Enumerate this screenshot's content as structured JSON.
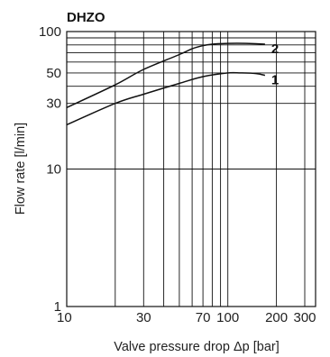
{
  "chart_data": {
    "type": "line",
    "title": "DHZO",
    "xlabel": "Valve pressure drop Δp [bar]",
    "ylabel": "Flow rate [l/min]",
    "xscale": "log",
    "yscale": "log",
    "xlim": [
      10,
      350
    ],
    "ylim": [
      1,
      100
    ],
    "grid": true,
    "x_ticks": [
      {
        "value": 10,
        "label": "10"
      },
      {
        "value": 30,
        "label": "30"
      },
      {
        "value": 70,
        "label": "70"
      },
      {
        "value": 100,
        "label": "100"
      },
      {
        "value": 200,
        "label": "200"
      },
      {
        "value": 300,
        "label": "300"
      }
    ],
    "y_ticks": [
      {
        "value": 1,
        "label": "1"
      },
      {
        "value": 10,
        "label": "10"
      },
      {
        "value": 30,
        "label": "30"
      },
      {
        "value": 50,
        "label": "50"
      },
      {
        "value": 100,
        "label": "100"
      }
    ],
    "x_grid": [
      10,
      20,
      30,
      40,
      50,
      60,
      70,
      80,
      90,
      100,
      200,
      300,
      350
    ],
    "y_grid": [
      1,
      10,
      30,
      40,
      50,
      60,
      70,
      80,
      90,
      100
    ],
    "series": [
      {
        "name": "1",
        "x": [
          10,
          20,
          30,
          50,
          70,
          100,
          120,
          150,
          170
        ],
        "y": [
          21,
          30,
          35,
          42,
          47,
          50,
          50,
          49.5,
          48
        ]
      },
      {
        "name": "2",
        "x": [
          10,
          20,
          30,
          50,
          60,
          70,
          80,
          100,
          130,
          170
        ],
        "y": [
          28,
          41,
          53,
          68,
          75,
          79,
          81,
          82,
          82,
          81
        ]
      }
    ]
  }
}
